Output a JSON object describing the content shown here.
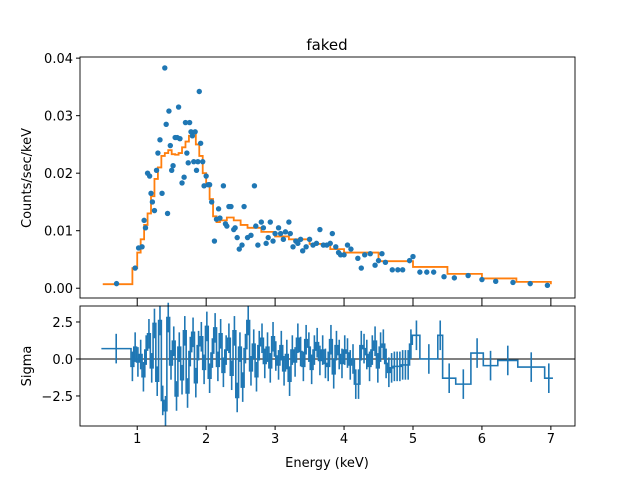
{
  "chart_data": [
    {
      "type": "scatter",
      "title": "faked",
      "xlabel": "",
      "ylabel": "Counts/sec/keV",
      "xlim": [
        0.17,
        7.35
      ],
      "ylim": [
        -0.0017,
        0.0402
      ],
      "xticks": [
        1,
        2,
        3,
        4,
        5,
        6,
        7
      ],
      "yticks": [
        0.0,
        0.01,
        0.02,
        0.03,
        0.04
      ],
      "ytick_labels": [
        "0.00",
        "0.01",
        "0.02",
        "0.03",
        "0.04"
      ],
      "data_color": "#1f77b4",
      "model_color": "#ff7f0e",
      "data": {
        "x": [
          0.7,
          0.97,
          1.02,
          1.07,
          1.1,
          1.12,
          1.15,
          1.18,
          1.2,
          1.22,
          1.25,
          1.28,
          1.3,
          1.33,
          1.36,
          1.4,
          1.42,
          1.44,
          1.46,
          1.48,
          1.5,
          1.52,
          1.55,
          1.58,
          1.6,
          1.62,
          1.65,
          1.68,
          1.7,
          1.72,
          1.74,
          1.76,
          1.78,
          1.8,
          1.82,
          1.84,
          1.86,
          1.88,
          1.9,
          1.92,
          1.95,
          1.97,
          2.0,
          2.03,
          2.05,
          2.08,
          2.12,
          2.15,
          2.18,
          2.2,
          2.25,
          2.28,
          2.3,
          2.33,
          2.36,
          2.4,
          2.42,
          2.45,
          2.48,
          2.52,
          2.55,
          2.6,
          2.65,
          2.7,
          2.72,
          2.75,
          2.8,
          2.83,
          2.87,
          2.9,
          2.93,
          2.97,
          3.0,
          3.05,
          3.08,
          3.12,
          3.15,
          3.2,
          3.22,
          3.26,
          3.3,
          3.33,
          3.37,
          3.4,
          3.45,
          3.5,
          3.55,
          3.6,
          3.65,
          3.7,
          3.75,
          3.8,
          3.83,
          3.88,
          3.92,
          3.95,
          4.0,
          4.05,
          4.1,
          4.2,
          4.25,
          4.3,
          4.38,
          4.45,
          4.5,
          4.55,
          4.6,
          4.7,
          4.78,
          4.85,
          4.95,
          5.0,
          5.1,
          5.2,
          5.3,
          5.45,
          5.6,
          5.8,
          6.0,
          6.2,
          6.45,
          6.7,
          6.95
        ],
        "y": [
          0.0008,
          0.0035,
          0.007,
          0.0072,
          0.0118,
          0.0105,
          0.02,
          0.0195,
          0.0165,
          0.015,
          0.0135,
          0.0205,
          0.0235,
          0.0258,
          0.0165,
          0.0383,
          0.0285,
          0.013,
          0.0308,
          0.0248,
          0.0205,
          0.0213,
          0.0262,
          0.0262,
          0.0315,
          0.026,
          0.0183,
          0.0193,
          0.0288,
          0.0235,
          0.0218,
          0.0288,
          0.0272,
          0.0265,
          0.022,
          0.0272,
          0.0205,
          0.022,
          0.0342,
          0.0252,
          0.022,
          0.0178,
          0.0195,
          0.018,
          0.018,
          0.015,
          0.0082,
          0.012,
          0.0138,
          0.0122,
          0.0178,
          0.0112,
          0.0108,
          0.0142,
          0.0142,
          0.0102,
          0.0105,
          0.0088,
          0.0068,
          0.0075,
          0.0142,
          0.0088,
          0.0092,
          0.0178,
          0.0108,
          0.0075,
          0.0115,
          0.0105,
          0.0078,
          0.0088,
          0.0115,
          0.0082,
          0.0095,
          0.0105,
          0.0095,
          0.0085,
          0.0098,
          0.0115,
          0.0095,
          0.0072,
          0.0082,
          0.0078,
          0.0085,
          0.0065,
          0.0072,
          0.0085,
          0.0075,
          0.0078,
          0.0102,
          0.0075,
          0.0075,
          0.0078,
          0.0095,
          0.0072,
          0.0062,
          0.0058,
          0.0058,
          0.0075,
          0.0068,
          0.0052,
          0.0035,
          0.0058,
          0.006,
          0.004,
          0.0048,
          0.006,
          0.0045,
          0.0032,
          0.0032,
          0.0032,
          0.0048,
          0.0055,
          0.0028,
          0.0028,
          0.0028,
          0.002,
          0.0018,
          0.0022,
          0.0015,
          0.0012,
          0.001,
          0.0008,
          0.0005
        ]
      },
      "model": {
        "x": [
          0.5,
          0.93,
          1.0,
          1.05,
          1.1,
          1.15,
          1.2,
          1.25,
          1.3,
          1.35,
          1.4,
          1.45,
          1.5,
          1.55,
          1.6,
          1.65,
          1.7,
          1.75,
          1.8,
          1.85,
          1.9,
          1.95,
          2.0,
          2.05,
          2.1,
          2.15,
          2.2,
          2.3,
          2.4,
          2.5,
          2.6,
          2.8,
          3.0,
          3.2,
          3.5,
          3.8,
          4.0,
          4.5,
          5.0,
          5.5,
          6.0,
          6.5,
          7.0
        ],
        "y": [
          0.0007,
          0.0035,
          0.0062,
          0.0085,
          0.011,
          0.013,
          0.016,
          0.019,
          0.021,
          0.023,
          0.0235,
          0.024,
          0.0233,
          0.0232,
          0.0235,
          0.0245,
          0.0255,
          0.0265,
          0.027,
          0.025,
          0.023,
          0.02,
          0.018,
          0.0155,
          0.0125,
          0.0115,
          0.0118,
          0.0123,
          0.0118,
          0.011,
          0.0105,
          0.0098,
          0.009,
          0.0085,
          0.0077,
          0.0068,
          0.0062,
          0.0047,
          0.0037,
          0.0025,
          0.0017,
          0.0011,
          0.0007
        ]
      }
    },
    {
      "type": "line",
      "xlabel": "Energy (keV)",
      "ylabel": "Sigma",
      "xlim": [
        0.17,
        7.35
      ],
      "ylim": [
        -4.53,
        3.58
      ],
      "xticks": [
        1,
        2,
        3,
        4,
        5,
        6,
        7
      ],
      "xtick_labels": [
        "1",
        "2",
        "3",
        "4",
        "5",
        "6",
        "7"
      ],
      "yticks": [
        2.5,
        0.0,
        -2.5
      ],
      "ytick_labels": [
        "2.5",
        "0.0",
        "−2.5"
      ],
      "color": "#1f77b4",
      "residuals": {
        "x": [
          0.695,
          0.93,
          0.97,
          1.01,
          1.05,
          1.09,
          1.13,
          1.17,
          1.21,
          1.25,
          1.29,
          1.33,
          1.37,
          1.41,
          1.45,
          1.49,
          1.53,
          1.57,
          1.61,
          1.65,
          1.69,
          1.73,
          1.77,
          1.81,
          1.85,
          1.89,
          1.93,
          1.97,
          2.01,
          2.05,
          2.09,
          2.13,
          2.17,
          2.21,
          2.25,
          2.29,
          2.33,
          2.37,
          2.41,
          2.45,
          2.49,
          2.53,
          2.57,
          2.61,
          2.65,
          2.69,
          2.73,
          2.77,
          2.81,
          2.85,
          2.89,
          2.93,
          2.97,
          3.01,
          3.05,
          3.09,
          3.13,
          3.17,
          3.21,
          3.25,
          3.29,
          3.33,
          3.37,
          3.41,
          3.45,
          3.49,
          3.53,
          3.57,
          3.61,
          3.65,
          3.69,
          3.73,
          3.77,
          3.81,
          3.85,
          3.89,
          3.93,
          3.97,
          4.01,
          4.05,
          4.09,
          4.13,
          4.17,
          4.21,
          4.25,
          4.29,
          4.33,
          4.37,
          4.41,
          4.45,
          4.49,
          4.53,
          4.57,
          4.61,
          4.65,
          4.69,
          4.73,
          4.77,
          4.81,
          4.85,
          4.89,
          4.93,
          4.97,
          5.05,
          5.23,
          5.395,
          5.525,
          5.73,
          5.93,
          6.125,
          6.375,
          6.715,
          6.97
        ],
        "y": [
          0.7,
          -0.5,
          0.8,
          -0.2,
          0.3,
          -1.2,
          0.6,
          1.7,
          -0.6,
          2.4,
          -1.5,
          2.6,
          -2.8,
          -3.5,
          2.8,
          -0.4,
          1.2,
          -2.5,
          0.8,
          -1.4,
          1.9,
          -2.3,
          0.5,
          1.8,
          -1.6,
          0.9,
          1.5,
          -0.7,
          2.2,
          -1.3,
          0.4,
          2.1,
          -0.5,
          1.7,
          -0.9,
          0.6,
          1.4,
          -1.1,
          1.9,
          -2.6,
          0.8,
          -1.9,
          0.7,
          2.6,
          -0.8,
          1.0,
          -1.2,
          0.9,
          1.4,
          -0.3,
          0.8,
          -0.6,
          1.5,
          0.2,
          -0.4,
          0.9,
          -0.8,
          0.3,
          -1.5,
          0.6,
          -0.2,
          1.4,
          0.5,
          -0.5,
          1.3,
          0.8,
          -0.7,
          0.6,
          1.1,
          -0.1,
          0.6,
          -0.3,
          -0.5,
          1.3,
          -1.0,
          0.9,
          0.3,
          -0.3,
          0.6,
          0.4,
          -0.4,
          0.0,
          -1.7,
          -1.7,
          0.9,
          0.7,
          0.3,
          -0.5,
          0.6,
          1.2,
          -0.6,
          0.8,
          1.0,
          -0.3,
          -0.9,
          -0.6,
          -0.5,
          -0.5,
          -0.5,
          -0.4,
          -0.4,
          -0.4,
          1.0,
          1.6,
          0.0,
          1.6,
          -1.3,
          -1.7,
          0.4,
          -0.45,
          -0.1,
          -0.55,
          -1.3
        ],
        "xerr": [
          0.215,
          0.02,
          0.02,
          0.02,
          0.02,
          0.02,
          0.02,
          0.02,
          0.02,
          0.02,
          0.02,
          0.02,
          0.02,
          0.02,
          0.02,
          0.02,
          0.02,
          0.02,
          0.02,
          0.02,
          0.02,
          0.02,
          0.02,
          0.02,
          0.02,
          0.02,
          0.02,
          0.02,
          0.02,
          0.02,
          0.02,
          0.02,
          0.02,
          0.02,
          0.02,
          0.02,
          0.02,
          0.02,
          0.02,
          0.02,
          0.02,
          0.02,
          0.02,
          0.02,
          0.02,
          0.02,
          0.02,
          0.02,
          0.02,
          0.02,
          0.02,
          0.02,
          0.02,
          0.02,
          0.02,
          0.02,
          0.02,
          0.02,
          0.02,
          0.02,
          0.02,
          0.02,
          0.02,
          0.02,
          0.02,
          0.02,
          0.02,
          0.02,
          0.02,
          0.02,
          0.02,
          0.02,
          0.02,
          0.02,
          0.02,
          0.02,
          0.02,
          0.02,
          0.02,
          0.02,
          0.02,
          0.02,
          0.02,
          0.02,
          0.02,
          0.02,
          0.02,
          0.02,
          0.02,
          0.02,
          0.02,
          0.02,
          0.02,
          0.02,
          0.02,
          0.02,
          0.02,
          0.02,
          0.02,
          0.02,
          0.02,
          0.02,
          0.02,
          0.05,
          0.13,
          0.035,
          0.095,
          0.11,
          0.09,
          0.105,
          0.145,
          0.195,
          0.06
        ],
        "yerr": 1
      }
    }
  ]
}
